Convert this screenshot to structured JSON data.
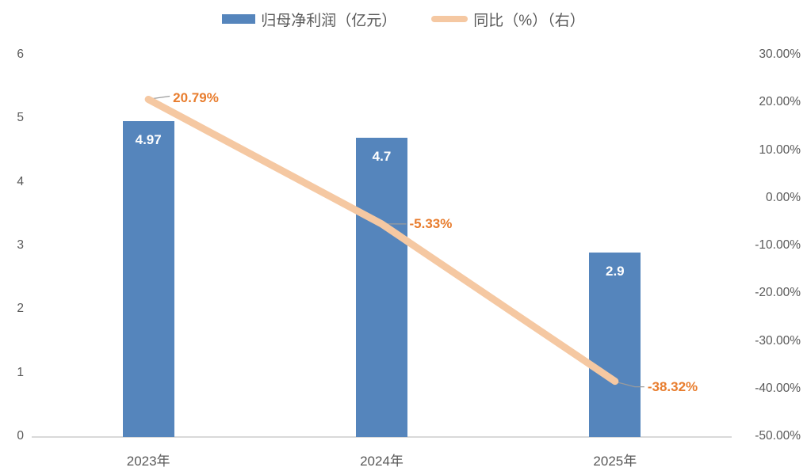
{
  "chart_data": {
    "type": "bar",
    "subtype": "combo-bar-line",
    "categories": [
      "2023年",
      "2024年",
      "2025年"
    ],
    "series": [
      {
        "name": "归母净利润（亿元）",
        "type": "bar",
        "axis": "left",
        "values": [
          4.97,
          4.7,
          2.9
        ],
        "labels": [
          "4.97",
          "4.7",
          "2.9"
        ],
        "color": "#5585BC",
        "label_color": "#FFFFFF"
      },
      {
        "name": "同比（%）（右）",
        "type": "line",
        "axis": "right",
        "values": [
          20.79,
          -5.33,
          -38.32
        ],
        "labels": [
          "20.79%",
          "-5.33%",
          "-38.32%"
        ],
        "color": "#F5C8A2",
        "label_color": "#E87D2E"
      }
    ],
    "left_axis": {
      "min": 0,
      "max": 6,
      "tick_interval": 1,
      "ticks_top_to_bottom": [
        "6",
        "5",
        "4",
        "3",
        "2",
        "1",
        "0"
      ]
    },
    "right_axis": {
      "min": -50,
      "max": 30,
      "tick_interval": 10,
      "ticks_top_to_bottom": [
        "30.00%",
        "20.00%",
        "10.00%",
        "0.00%",
        "-10.00%",
        "-20.00%",
        "-30.00%",
        "-40.00%",
        "-50.00%"
      ]
    },
    "legend_position": "top",
    "grid": false,
    "title": ""
  },
  "legend": {
    "items": [
      {
        "label": "归母净利润（亿元）",
        "color": "#5585BC",
        "swatch": "bar"
      },
      {
        "label": "同比（%）（右）",
        "color": "#F5C8A2",
        "swatch": "line"
      }
    ]
  },
  "colors": {
    "axis_text": "#595959",
    "axis_line": "#D9D9D9",
    "leader_line": "#9B9B9B",
    "background": "#FFFFFF"
  }
}
